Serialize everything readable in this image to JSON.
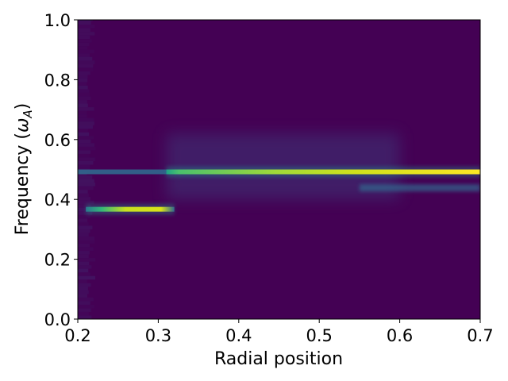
{
  "chart_data": {
    "type": "heatmap",
    "title": "",
    "xlabel": "Radial position",
    "ylabel_main": "Frequency (",
    "ylabel_symbol": "ω",
    "ylabel_sub": "A",
    "ylabel_close": ")",
    "xlim": [
      0.2,
      0.7
    ],
    "ylim": [
      0.0,
      1.0
    ],
    "xticks": [
      0.2,
      0.3,
      0.4,
      0.5,
      0.6,
      0.7
    ],
    "yticks": [
      0.0,
      0.2,
      0.4,
      0.6,
      0.8,
      1.0
    ],
    "xtick_labels": [
      "0.2",
      "0.3",
      "0.4",
      "0.5",
      "0.6",
      "0.7"
    ],
    "ytick_labels": [
      "0.0",
      "0.2",
      "0.4",
      "0.6",
      "0.8",
      "1.0"
    ],
    "colormap": "viridis",
    "background_color": "#440154",
    "grid": false,
    "features": [
      {
        "kind": "dominant_band",
        "frequency": 0.492,
        "x_range": [
          0.31,
          0.7
        ],
        "intensity_start": 0.7,
        "intensity_end": 1.0
      },
      {
        "kind": "faint_band",
        "frequency": 0.492,
        "x_range": [
          0.2,
          0.31
        ],
        "intensity": 0.3
      },
      {
        "kind": "dominant_band",
        "frequency": 0.367,
        "x_range": [
          0.21,
          0.32
        ],
        "intensity": 0.8
      },
      {
        "kind": "sideband",
        "frequency": 0.44,
        "x_range": [
          0.55,
          0.7
        ],
        "intensity": 0.25
      },
      {
        "kind": "diffuse_region",
        "frequency_range": [
          0.4,
          0.62
        ],
        "x_range": [
          0.31,
          0.6
        ],
        "intensity": 0.12
      }
    ]
  }
}
